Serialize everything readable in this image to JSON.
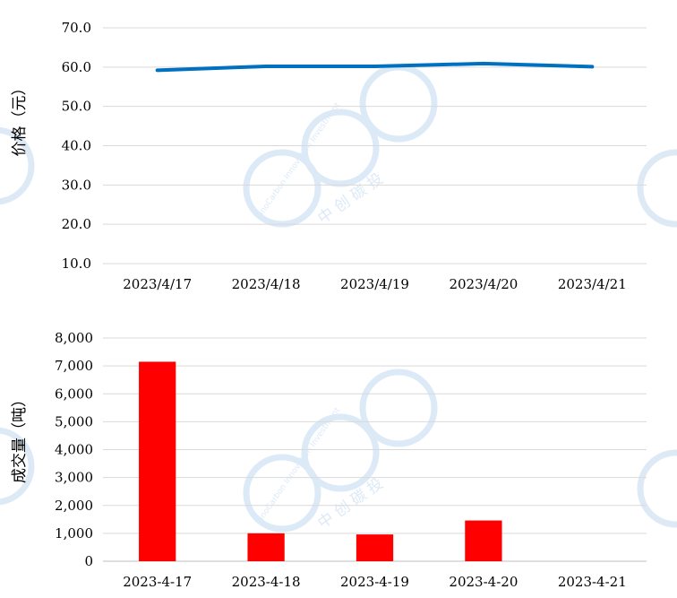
{
  "watermark": {
    "latin_text": "SinoCarbon Innovation Investment",
    "cjk_text": "中 创 碳 投",
    "color": "#d7e6f5"
  },
  "chart_data": [
    {
      "type": "line",
      "ylabel": "价格（元）",
      "categories": [
        "2023/4/17",
        "2023/4/18",
        "2023/4/19",
        "2023/4/20",
        "2023/4/21"
      ],
      "series": [
        {
          "values": [
            59.2,
            60.2,
            60.2,
            60.9,
            60.1
          ],
          "color": "#0070c0"
        }
      ],
      "ylim": [
        10,
        70
      ],
      "yticks": [
        "10.0",
        "20.0",
        "30.0",
        "40.0",
        "50.0",
        "60.0",
        "70.0"
      ],
      "grid": true,
      "legend": "none"
    },
    {
      "type": "bar",
      "ylabel": "成交量（吨）",
      "categories": [
        "2023-4-17",
        "2023-4-18",
        "2023-4-19",
        "2023-4-20",
        "2023-4-21"
      ],
      "series": [
        {
          "values": [
            7150,
            1000,
            960,
            1460,
            0
          ],
          "color": "#ff0000"
        }
      ],
      "ylim": [
        0,
        8000
      ],
      "yticks": [
        "0",
        "1,000",
        "2,000",
        "3,000",
        "4,000",
        "5,000",
        "6,000",
        "7,000",
        "8,000"
      ],
      "grid": true,
      "legend": "none"
    }
  ]
}
